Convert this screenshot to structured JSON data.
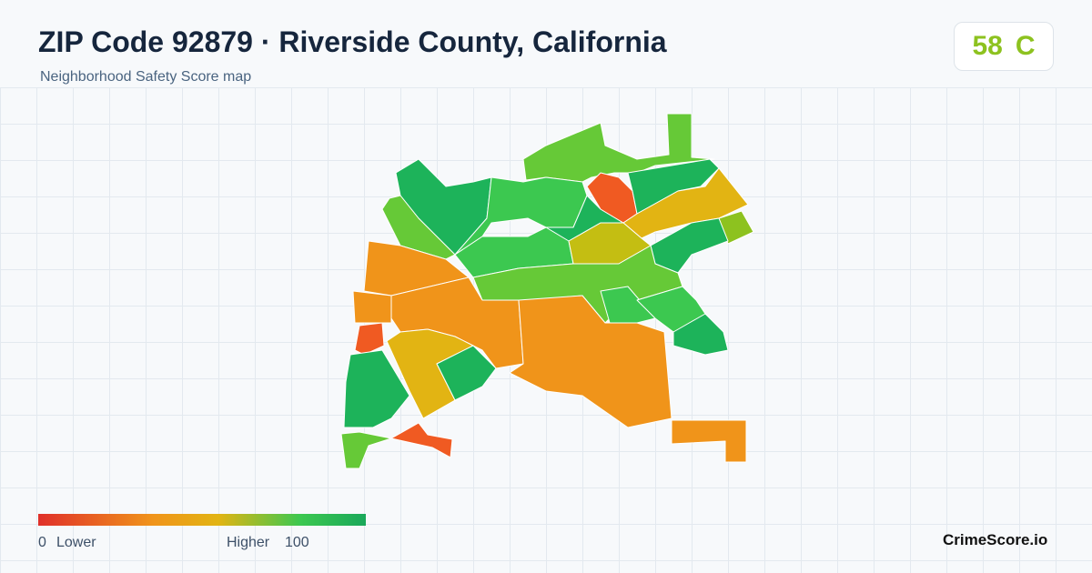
{
  "header": {
    "title": "ZIP Code 92879 · Riverside County, California",
    "subtitle": "Neighborhood Safety Score map"
  },
  "score": {
    "value": 58,
    "grade": "C"
  },
  "legend": {
    "min": 0,
    "min_label": "Lower",
    "max_label": "Higher",
    "max": 100
  },
  "brand": "CrimeScore.io"
}
